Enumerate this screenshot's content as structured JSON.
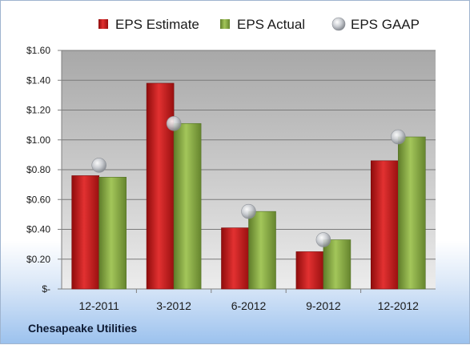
{
  "chart_data": {
    "type": "bar",
    "categories": [
      "12-2011",
      "3-2012",
      "6-2012",
      "9-2012",
      "12-2012"
    ],
    "series": [
      {
        "name": "EPS Estimate",
        "kind": "bar",
        "color": "#c41a1a",
        "values": [
          0.76,
          1.38,
          0.41,
          0.25,
          0.86
        ]
      },
      {
        "name": "EPS Actual",
        "kind": "bar",
        "color": "#8aac45",
        "values": [
          0.75,
          1.11,
          0.52,
          0.33,
          1.02
        ]
      },
      {
        "name": "EPS GAAP",
        "kind": "marker",
        "color": "#b8bcc2",
        "values": [
          0.83,
          1.11,
          0.52,
          0.33,
          1.02
        ]
      }
    ],
    "yticks": [
      "$-",
      "$0.20",
      "$0.40",
      "$0.60",
      "$0.80",
      "$1.00",
      "$1.20",
      "$1.40",
      "$1.60"
    ],
    "ylim": [
      0,
      1.6
    ],
    "grid": true,
    "legend_position": "top"
  },
  "footer": {
    "company": "Chesapeake Utilities"
  }
}
